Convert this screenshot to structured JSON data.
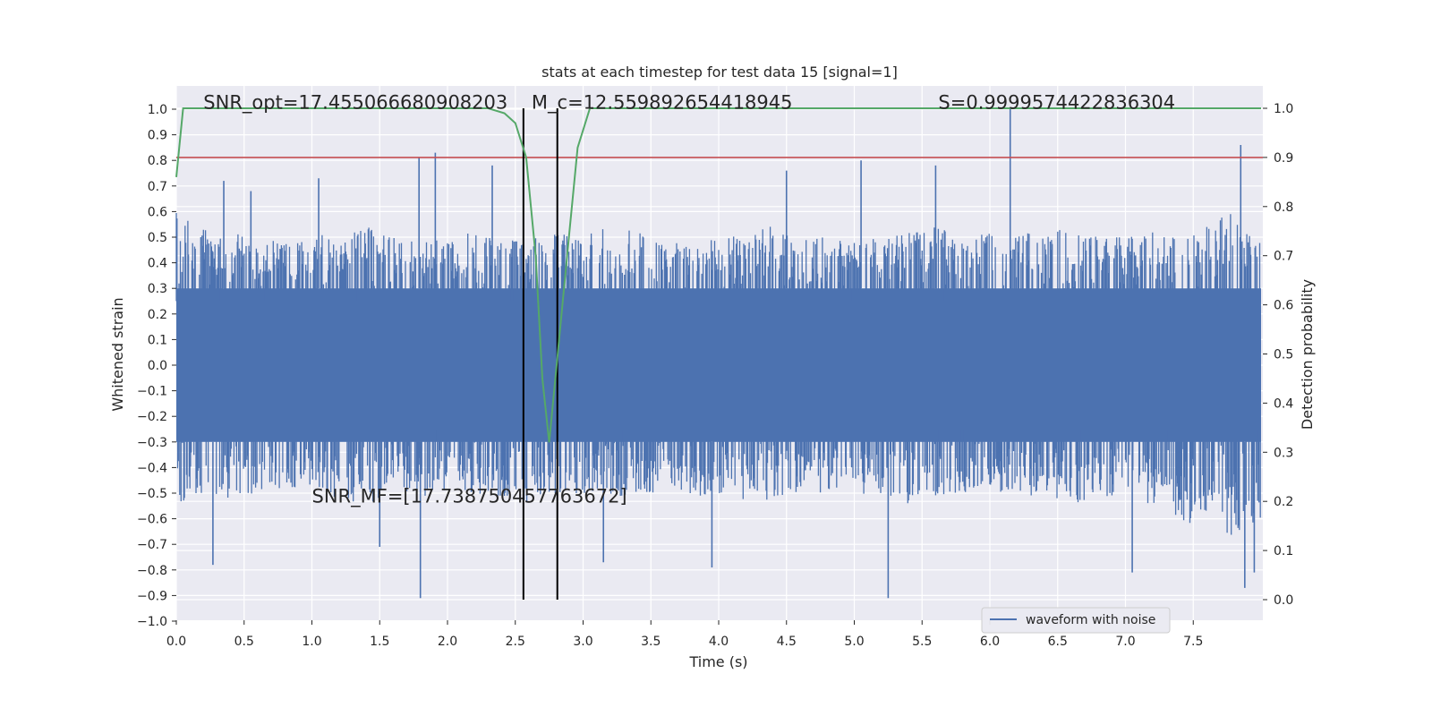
{
  "chart_data": {
    "type": "line",
    "title": "stats at each timestep for test data 15 [signal=1]",
    "xlabel": "Time (s)",
    "ylabel": "Whitened strain",
    "y2label": "Detection probability",
    "xlim": [
      0.0,
      8.0
    ],
    "ylim": [
      -1.0,
      1.0
    ],
    "y2lim": [
      0.0,
      1.0
    ],
    "xticks": [
      0.0,
      0.5,
      1.0,
      1.5,
      2.0,
      2.5,
      3.0,
      3.5,
      4.0,
      4.5,
      5.0,
      5.5,
      6.0,
      6.5,
      7.0,
      7.5
    ],
    "yticks": [
      -1.0,
      -0.9,
      -0.8,
      -0.7,
      -0.6,
      -0.5,
      -0.4,
      -0.3,
      -0.2,
      -0.1,
      0.0,
      0.1,
      0.2,
      0.3,
      0.4,
      0.5,
      0.6,
      0.7,
      0.8,
      0.9,
      1.0
    ],
    "y2ticks": [
      0.0,
      0.1,
      0.2,
      0.3,
      0.4,
      0.5,
      0.6,
      0.7,
      0.8,
      0.9,
      1.0
    ],
    "grid": true,
    "legend_placement": "lower-right",
    "colors": {
      "waveform": "#4c72b0",
      "probability": "#55a868",
      "threshold": "#c44e52",
      "markers": "#000000",
      "background": "#eaeaf2"
    },
    "series": [
      {
        "name": "waveform with noise",
        "axis": "left",
        "style": "dense-noise",
        "envelope_upper": [
          0.6,
          0.55,
          0.52,
          0.5,
          0.48,
          0.52,
          0.5,
          0.55,
          0.5,
          0.48,
          0.5,
          0.52,
          0.48,
          0.5,
          0.52,
          0.5,
          0.55,
          0.52,
          0.5,
          0.48,
          0.5,
          0.52,
          0.55,
          0.5,
          0.5,
          0.48,
          0.5,
          0.52,
          0.55,
          0.5,
          0.52,
          0.5,
          0.55,
          0.52,
          0.5,
          0.5,
          0.52,
          0.5,
          0.55,
          0.6,
          0.58
        ],
        "envelope_lower": [
          -0.55,
          -0.5,
          -0.52,
          -0.5,
          -0.48,
          -0.5,
          -0.52,
          -0.55,
          -0.5,
          -0.52,
          -0.5,
          -0.5,
          -0.52,
          -0.55,
          -0.5,
          -0.5,
          -0.52,
          -0.5,
          -0.5,
          -0.52,
          -0.5,
          -0.55,
          -0.52,
          -0.5,
          -0.5,
          -0.52,
          -0.5,
          -0.55,
          -0.52,
          -0.5,
          -0.5,
          -0.52,
          -0.5,
          -0.55,
          -0.52,
          -0.5,
          -0.55,
          -0.6,
          -0.65,
          -0.68,
          -0.6
        ],
        "spikes": [
          {
            "x": 0.27,
            "y": -0.78
          },
          {
            "x": 0.35,
            "y": 0.72
          },
          {
            "x": 0.55,
            "y": 0.68
          },
          {
            "x": 1.05,
            "y": 0.73
          },
          {
            "x": 1.5,
            "y": -0.71
          },
          {
            "x": 1.8,
            "y": -0.91
          },
          {
            "x": 1.91,
            "y": 0.83
          },
          {
            "x": 1.79,
            "y": 0.81
          },
          {
            "x": 2.33,
            "y": 0.78
          },
          {
            "x": 3.15,
            "y": -0.77
          },
          {
            "x": 3.95,
            "y": -0.79
          },
          {
            "x": 4.5,
            "y": 0.76
          },
          {
            "x": 5.05,
            "y": 0.8
          },
          {
            "x": 5.25,
            "y": -0.91
          },
          {
            "x": 5.6,
            "y": 0.78
          },
          {
            "x": 6.15,
            "y": 1.0
          },
          {
            "x": 7.05,
            "y": -0.81
          },
          {
            "x": 7.85,
            "y": 0.86
          },
          {
            "x": 7.88,
            "y": -0.87
          },
          {
            "x": 7.95,
            "y": -0.81
          }
        ]
      },
      {
        "name": "",
        "axis": "right",
        "x": [
          0.0,
          0.05,
          0.1,
          2.3,
          2.42,
          2.5,
          2.58,
          2.65,
          2.7,
          2.75,
          2.82,
          2.9,
          2.96,
          3.05,
          8.0
        ],
        "values": [
          0.86,
          1.0,
          1.0,
          1.0,
          0.99,
          0.97,
          0.9,
          0.7,
          0.45,
          0.32,
          0.52,
          0.75,
          0.92,
          1.0,
          1.0
        ]
      }
    ],
    "threshold": {
      "axis": "right",
      "value": 0.9
    },
    "vertical_lines": [
      2.56,
      2.81
    ],
    "annotations": [
      {
        "text": "SNR_opt=17.455066680908203",
        "x": 0.2,
        "y": 1.02
      },
      {
        "text": "M_c=12.559892654418945",
        "x": 2.62,
        "y": 1.02
      },
      {
        "text": "S=0.9999574422836304",
        "x": 5.62,
        "y": 1.02
      },
      {
        "text": "SNR_MF=[17.738750457763672]",
        "x": 1.0,
        "y": -0.52
      }
    ],
    "legend": [
      "waveform with noise"
    ]
  }
}
